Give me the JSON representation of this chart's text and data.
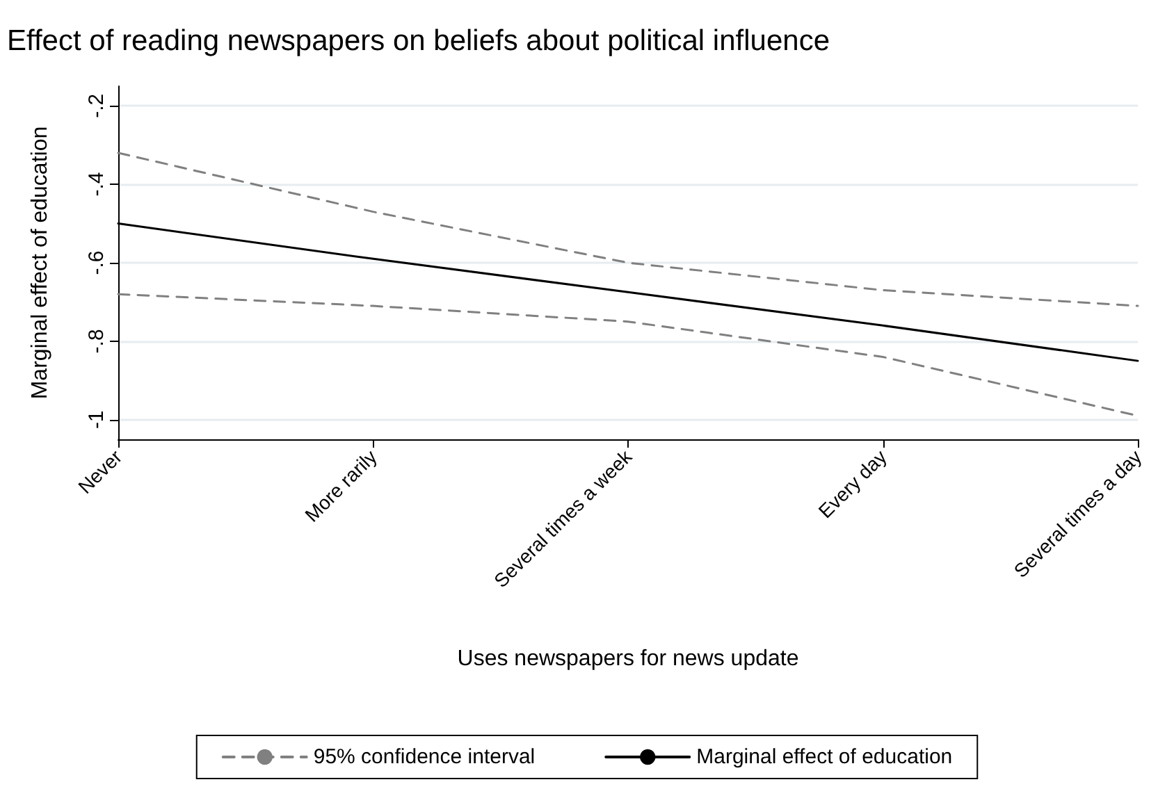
{
  "chart_data": {
    "type": "line",
    "title": "Effect of reading newspapers on beliefs about political influence",
    "xlabel": "Uses newspapers for news update",
    "ylabel": "Marginal effect of education",
    "categories": [
      "Never",
      "More rarily",
      "Several times a week",
      "Every day",
      "Several times a day"
    ],
    "series": [
      {
        "name": "95% confidence interval",
        "color": "#808080",
        "line_style": "dashed",
        "values": [
          -0.32,
          -0.47,
          -0.6,
          -0.67,
          -0.71
        ]
      },
      {
        "color": "#808080",
        "line_style": "dashed",
        "values": [
          -0.68,
          -0.71,
          -0.75,
          -0.84,
          -0.99
        ]
      },
      {
        "name": "Marginal effect of education",
        "color": "#000000",
        "line_style": "solid",
        "values": [
          -0.5,
          -0.59,
          -0.675,
          -0.76,
          -0.85
        ]
      }
    ],
    "ylim": [
      -1.05,
      -0.15
    ],
    "yticks": [
      {
        "value": -1,
        "label": "-1"
      },
      {
        "value": -0.8,
        "label": "-.8"
      },
      {
        "value": -0.6,
        "label": "-.6"
      },
      {
        "value": -0.4,
        "label": "-.4"
      },
      {
        "value": -0.2,
        "label": "-.2"
      }
    ],
    "grid": "y",
    "legend": "bottom",
    "marker": "none"
  }
}
